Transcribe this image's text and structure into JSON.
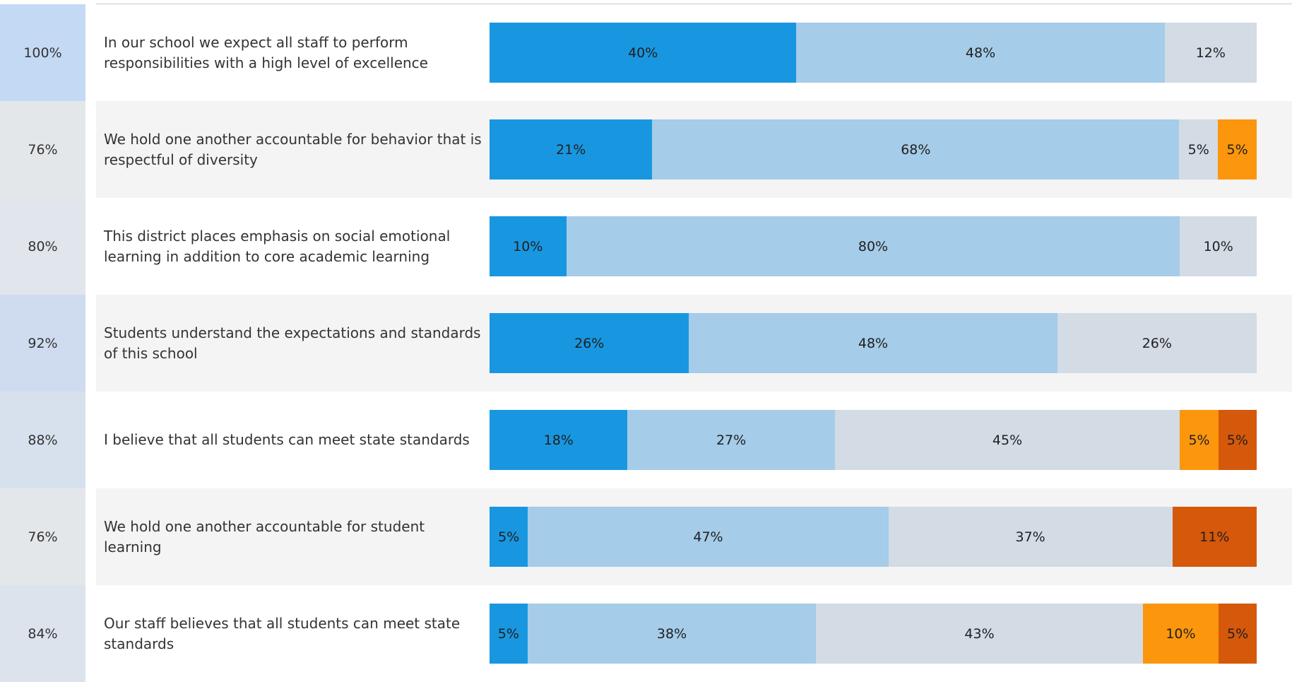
{
  "colors": {
    "strongly_agree": "#1897e0",
    "agree": "#a5cce8",
    "neutral": "#d3dbe5",
    "disagree": "#fb960d",
    "strongly_disagree": "#d6580a",
    "row_stripe": "#f4f4f4",
    "row_plain": "#ffffff"
  },
  "chart_data": {
    "type": "bar",
    "orientation": "horizontal",
    "stacked": true,
    "normalized_to": 100,
    "legend": "none",
    "grid": false,
    "categories": [
      "In our school we expect all staff to perform responsibilities with a high level of excellence",
      "We hold one another accountable for behavior that is respectful of diversity",
      "This district places emphasis on social emotional learning in addition to core academic learning",
      "Students understand the expectations and standards of this school",
      "I believe that all students can meet state standards",
      "We hold one another accountable for student learning",
      "Our staff believes that all students can meet state standards"
    ],
    "scores": [
      "100%",
      "76%",
      "80%",
      "92%",
      "88%",
      "76%",
      "84%"
    ],
    "score_colors": [
      "#c4d9f4",
      "#e4e7ea",
      "#e1e5ec",
      "#cfdcf0",
      "#d7e1ee",
      "#e4e7ea",
      "#dce3ed"
    ],
    "series": [
      {
        "color_key": "strongly_agree",
        "values": [
          40,
          21,
          10,
          26,
          18,
          5,
          5
        ]
      },
      {
        "color_key": "agree",
        "values": [
          48,
          68,
          80,
          48,
          27,
          47,
          38
        ]
      },
      {
        "color_key": "neutral",
        "values": [
          12,
          5,
          10,
          26,
          45,
          37,
          43
        ]
      },
      {
        "color_key": "disagree",
        "values": [
          0,
          5,
          0,
          0,
          5,
          0,
          10
        ]
      },
      {
        "color_key": "strongly_disagree",
        "values": [
          0,
          0,
          0,
          0,
          5,
          11,
          5
        ]
      }
    ],
    "row_widths_pct": [
      100,
      100,
      100,
      100,
      100,
      100,
      100
    ]
  }
}
